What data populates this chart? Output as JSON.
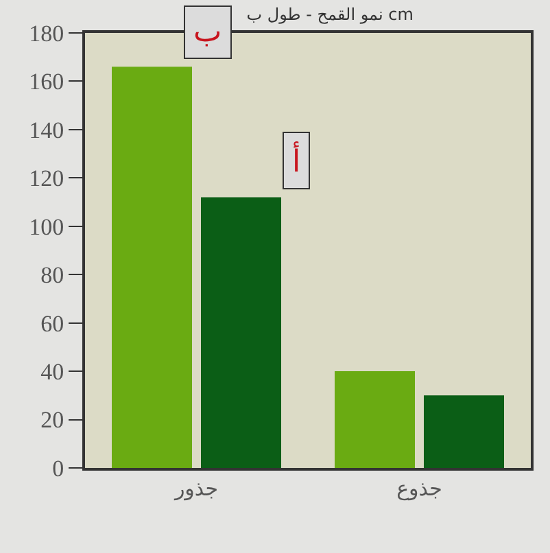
{
  "chart_data": {
    "type": "bar",
    "title": "نمو القمح - طول ب cm",
    "categories": [
      "جذور",
      "جذوع"
    ],
    "series": [
      {
        "name": "ب",
        "color": "#6aab12",
        "values": [
          166,
          40
        ]
      },
      {
        "name": "أ",
        "color": "#0b5e16",
        "values": [
          112,
          30
        ]
      }
    ],
    "ylim": [
      0,
      180
    ],
    "yticks": [
      0,
      20,
      40,
      60,
      80,
      100,
      120,
      140,
      160,
      180
    ],
    "grid": false,
    "legend": false
  }
}
